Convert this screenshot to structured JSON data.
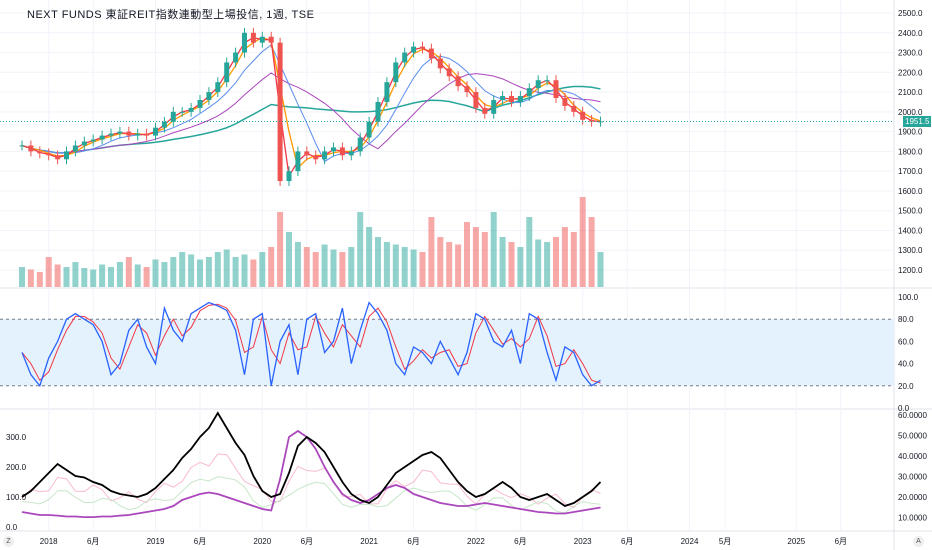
{
  "header": {
    "title": "NEXT FUNDS 東証REIT指数連動型上場投信, 1週, TSE"
  },
  "last_price": "1951.5",
  "colors": {
    "up": "#26a69a",
    "down": "#ef5350",
    "ma_fast": "#f23645",
    "ma_mid": "#ff9800",
    "ma_blue": "#5b8def",
    "ma_purple": "#ab47bc",
    "ma_green": "#26a69a",
    "stoch_k": "#2962ff",
    "stoch_d": "#f23645",
    "band": "#e3f2fd",
    "hv_black": "#000000",
    "hv_purple": "#ab47bc"
  },
  "buttons": {
    "left": "Z",
    "right": "A"
  },
  "chart_data": [
    {
      "type": "line",
      "panel": "price",
      "ylim": [
        1100,
        2550
      ],
      "yticks": [
        "2500.0",
        "2400.0",
        "2300.0",
        "2200.0",
        "2100.0",
        "2000.0",
        "1900.0",
        "1800.0",
        "1700.0",
        "1600.0",
        "1500.0",
        "1400.0",
        "1300.0",
        "1200.0"
      ],
      "close": [
        1830,
        1800,
        1790,
        1780,
        1760,
        1800,
        1830,
        1850,
        1860,
        1880,
        1890,
        1900,
        1880,
        1890,
        1880,
        1920,
        1950,
        2000,
        2000,
        2020,
        2060,
        2100,
        2150,
        2250,
        2300,
        2400,
        2350,
        2380,
        2350,
        1650,
        1700,
        1800,
        1780,
        1760,
        1800,
        1820,
        1780,
        1800,
        1870,
        1950,
        2050,
        2150,
        2250,
        2300,
        2330,
        2320,
        2270,
        2220,
        2180,
        2130,
        2100,
        2020,
        1990,
        2060,
        2080,
        2050,
        2080,
        2120,
        2160,
        2160,
        2070,
        2030,
        2000,
        1960,
        1950,
        1951.5
      ],
      "volume": [
        40,
        35,
        30,
        60,
        45,
        40,
        50,
        38,
        35,
        45,
        40,
        50,
        60,
        45,
        40,
        55,
        50,
        60,
        70,
        65,
        55,
        60,
        70,
        75,
        60,
        65,
        55,
        70,
        80,
        150,
        110,
        90,
        80,
        70,
        85,
        75,
        70,
        80,
        150,
        120,
        100,
        90,
        85,
        80,
        75,
        70,
        140,
        100,
        90,
        85,
        130,
        120,
        110,
        150,
        100,
        90,
        80,
        140,
        95,
        90,
        100,
        120,
        110,
        180,
        140,
        70
      ]
    },
    {
      "type": "line",
      "panel": "stochastic",
      "ylim": [
        0,
        100
      ],
      "yticks": [
        "100.0",
        "80.0",
        "60.0",
        "40.0",
        "20.0",
        "0.0"
      ],
      "band": [
        20,
        80
      ],
      "k": [
        50,
        30,
        20,
        45,
        60,
        80,
        85,
        80,
        75,
        60,
        30,
        40,
        70,
        80,
        55,
        40,
        90,
        70,
        60,
        85,
        90,
        95,
        92,
        88,
        70,
        30,
        80,
        85,
        20,
        60,
        75,
        30,
        80,
        85,
        50,
        60,
        90,
        40,
        70,
        95,
        85,
        70,
        40,
        30,
        55,
        50,
        40,
        60,
        45,
        30,
        50,
        85,
        80,
        60,
        55,
        70,
        40,
        85,
        80,
        50,
        25,
        55,
        50,
        30,
        20,
        25
      ]
    },
    {
      "type": "line",
      "panel": "volatility",
      "left_yticks": [
        "300.0",
        "200.0",
        "100.0",
        "0.0"
      ],
      "right_yticks": [
        "60.0000",
        "50.0000",
        "40.0000",
        "30.0000",
        "20.0000",
        "10.0000"
      ],
      "ylim": [
        0,
        360
      ],
      "black": [
        100,
        120,
        150,
        180,
        210,
        190,
        170,
        165,
        150,
        140,
        120,
        110,
        105,
        100,
        110,
        130,
        160,
        190,
        230,
        260,
        300,
        330,
        380,
        330,
        280,
        240,
        170,
        120,
        100,
        110,
        180,
        270,
        300,
        280,
        250,
        200,
        150,
        110,
        90,
        80,
        100,
        140,
        180,
        200,
        220,
        240,
        250,
        230,
        190,
        150,
        120,
        100,
        110,
        130,
        150,
        130,
        100,
        90,
        100,
        110,
        90,
        70,
        80,
        100,
        120,
        150
      ],
      "purple": [
        50,
        45,
        40,
        40,
        38,
        35,
        35,
        33,
        33,
        35,
        35,
        38,
        40,
        45,
        50,
        55,
        60,
        70,
        90,
        100,
        110,
        115,
        110,
        100,
        90,
        80,
        70,
        60,
        55,
        160,
        300,
        320,
        300,
        260,
        200,
        150,
        110,
        90,
        80,
        90,
        110,
        130,
        140,
        130,
        110,
        100,
        90,
        80,
        75,
        70,
        70,
        75,
        80,
        75,
        70,
        65,
        60,
        55,
        50,
        48,
        45,
        45,
        50,
        55,
        60,
        65
      ]
    },
    {
      "type": "axis",
      "xticks": [
        {
          "label": "2018",
          "m": 3
        },
        {
          "label": "6月",
          "m": 8
        },
        {
          "label": "2019",
          "m": 15
        },
        {
          "label": "6月",
          "m": 20
        },
        {
          "label": "2020",
          "m": 27
        },
        {
          "label": "6月",
          "m": 32
        },
        {
          "label": "2021",
          "m": 39
        },
        {
          "label": "6月",
          "m": 44
        },
        {
          "label": "2022",
          "m": 51
        },
        {
          "label": "6月",
          "m": 56
        },
        {
          "label": "2023",
          "m": 63
        },
        {
          "label": "6月",
          "m": 68
        },
        {
          "label": "2024",
          "m": 75
        },
        {
          "label": "5月",
          "m": 79
        },
        {
          "label": "2025",
          "m": 87
        },
        {
          "label": "6月",
          "m": 92
        }
      ]
    }
  ]
}
